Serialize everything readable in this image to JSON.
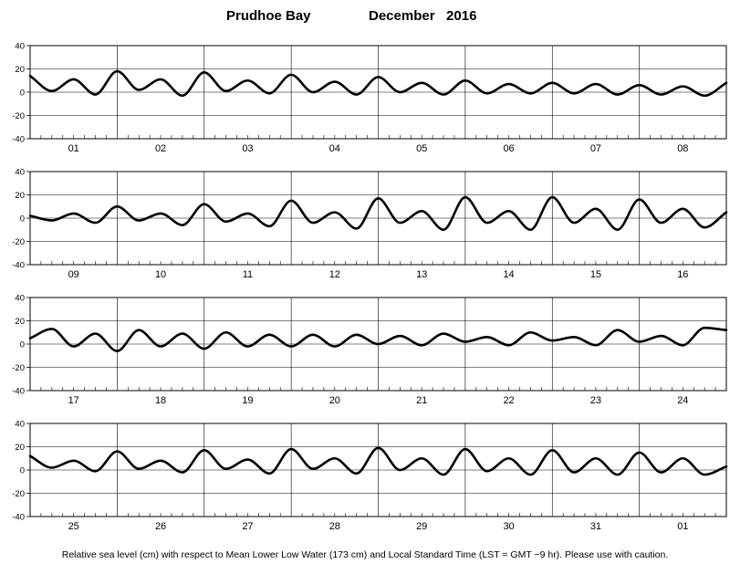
{
  "header": {
    "station": "Prudhoe Bay",
    "period": "December   2016"
  },
  "footnote": "Relative sea level (cm) with respect to Mean Lower Low Water (173 cm) and Local Standard Time (LST = GMT −9 hr). Please use with caution.",
  "chart_data": {
    "type": "line",
    "title": "Prudhoe Bay December 2016",
    "ylabel": "",
    "xlabel": "",
    "ylim": [
      -40,
      40
    ],
    "yticks": [
      -40,
      -20,
      0,
      20,
      40
    ],
    "grid": true,
    "legend": "none",
    "line_color": "#000000",
    "panels": [
      {
        "day_labels": [
          "01",
          "02",
          "03",
          "04",
          "05",
          "06",
          "07",
          "08"
        ],
        "x_unit": "hour",
        "x": [
          0,
          6,
          12,
          18,
          24,
          30,
          36,
          42,
          48,
          54,
          60,
          66,
          72,
          78,
          84,
          90,
          96,
          102,
          108,
          114,
          120,
          126,
          132,
          138,
          144,
          150,
          156,
          162,
          168,
          174,
          180,
          186,
          192
        ],
        "y": [
          14,
          1,
          11,
          -2,
          18,
          2,
          11,
          -3,
          17,
          1,
          10,
          -1,
          15,
          0,
          9,
          -2,
          13,
          0,
          8,
          -2,
          10,
          -1,
          7,
          -1,
          8,
          -1,
          7,
          -2,
          6,
          -2,
          5,
          -3,
          8
        ]
      },
      {
        "day_labels": [
          "09",
          "10",
          "11",
          "12",
          "13",
          "14",
          "15",
          "16"
        ],
        "x_unit": "hour",
        "x": [
          0,
          6,
          12,
          18,
          24,
          30,
          36,
          42,
          48,
          54,
          60,
          66,
          72,
          78,
          84,
          90,
          96,
          102,
          108,
          114,
          120,
          126,
          132,
          138,
          144,
          150,
          156,
          162,
          168,
          174,
          180,
          186,
          192
        ],
        "y": [
          2,
          -2,
          4,
          -4,
          10,
          -2,
          4,
          -6,
          12,
          -3,
          4,
          -7,
          15,
          -4,
          5,
          -9,
          17,
          -4,
          6,
          -10,
          18,
          -4,
          6,
          -10,
          18,
          -4,
          8,
          -10,
          16,
          -4,
          8,
          -8,
          5
        ]
      },
      {
        "day_labels": [
          "17",
          "18",
          "19",
          "20",
          "21",
          "22",
          "23",
          "24"
        ],
        "x_unit": "hour",
        "x": [
          0,
          6,
          12,
          18,
          24,
          30,
          36,
          42,
          48,
          54,
          60,
          66,
          72,
          78,
          84,
          90,
          96,
          102,
          108,
          114,
          120,
          126,
          132,
          138,
          144,
          150,
          156,
          162,
          168,
          174,
          180,
          186,
          192
        ],
        "y": [
          5,
          13,
          -2,
          9,
          -6,
          12,
          -2,
          9,
          -4,
          10,
          -2,
          8,
          -2,
          8,
          -2,
          8,
          0,
          7,
          -1,
          9,
          2,
          6,
          -1,
          10,
          3,
          6,
          -1,
          12,
          2,
          7,
          -1,
          14,
          12
        ]
      },
      {
        "day_labels": [
          "25",
          "26",
          "27",
          "28",
          "29",
          "30",
          "31",
          "01"
        ],
        "x_unit": "hour",
        "x": [
          0,
          6,
          12,
          18,
          24,
          30,
          36,
          42,
          48,
          54,
          60,
          66,
          72,
          78,
          84,
          90,
          96,
          102,
          108,
          114,
          120,
          126,
          132,
          138,
          144,
          150,
          156,
          162,
          168,
          174,
          180,
          186,
          192
        ],
        "y": [
          12,
          2,
          8,
          -1,
          16,
          1,
          8,
          -2,
          17,
          1,
          9,
          -3,
          18,
          1,
          10,
          -3,
          19,
          0,
          10,
          -4,
          18,
          -1,
          10,
          -4,
          17,
          -2,
          10,
          -4,
          15,
          -2,
          10,
          -4,
          3
        ]
      }
    ]
  }
}
